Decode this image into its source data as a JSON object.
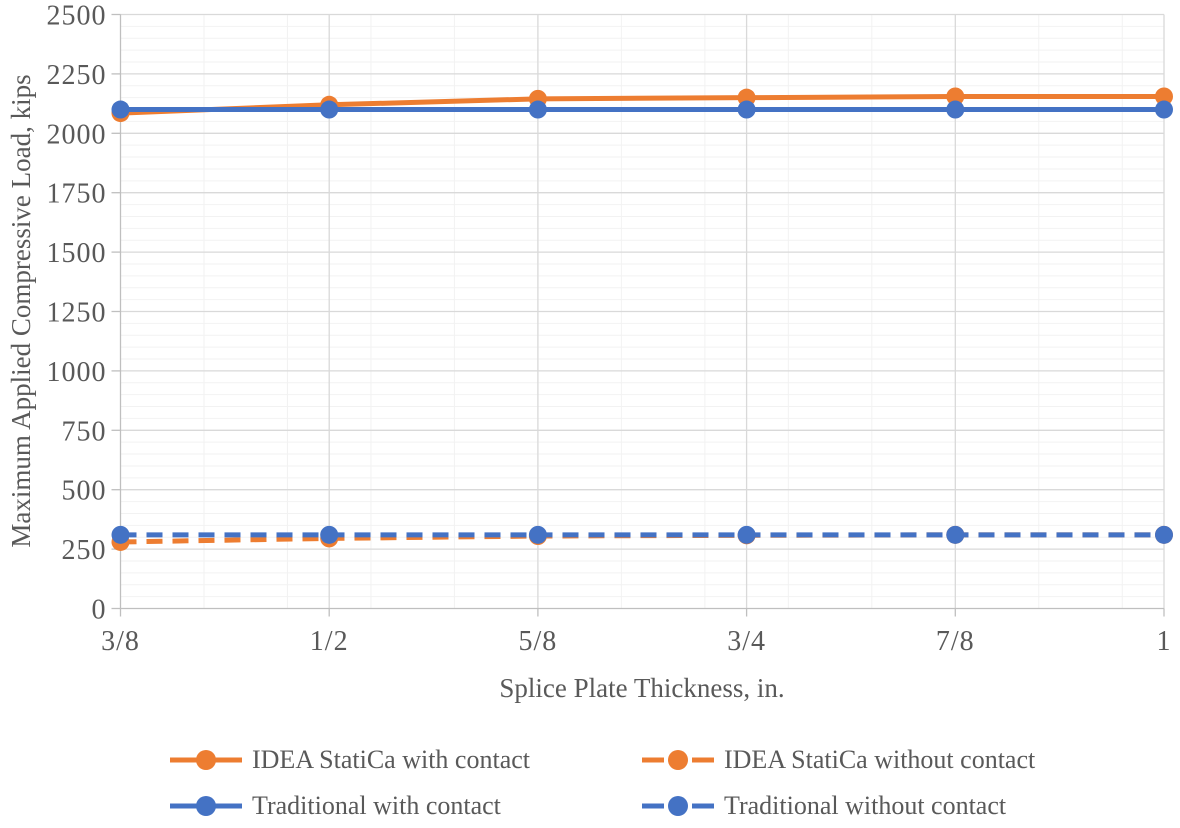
{
  "palette": {
    "text": "#595959",
    "axis": "#BFBFBF",
    "grid_major": "#D9D9D9",
    "grid_minor": "#F2F2F2",
    "background": "#FFFFFF",
    "orange": "#ED7D31",
    "blue": "#4472C4"
  },
  "chart_data": {
    "type": "line",
    "title": "",
    "xlabel": "Splice Plate Thickness, in.",
    "ylabel": "Maximum Applied Compressive Load, kips",
    "categories": [
      "3/8",
      "1/2",
      "5/8",
      "3/4",
      "7/8",
      "1"
    ],
    "x_values": [
      0.375,
      0.5,
      0.625,
      0.75,
      0.875,
      1.0
    ],
    "x_axis": {
      "min": 0.375,
      "max": 1.0,
      "major": 0.125,
      "minor": 0.05
    },
    "y_axis": {
      "min": 0,
      "max": 2500,
      "major": 250,
      "minor": 50
    },
    "y_tick_labels": [
      "0",
      "250",
      "500",
      "750",
      "1000",
      "1250",
      "1500",
      "1750",
      "2000",
      "2250",
      "2500"
    ],
    "grid": {
      "major": true,
      "minor": true
    },
    "legend_position": "bottom",
    "series": [
      {
        "name": "IDEA StatiCa with contact",
        "color": "#ED7D31",
        "style": "solid",
        "marker": "circle",
        "values": [
          2085,
          2120,
          2145,
          2150,
          2155,
          2155
        ]
      },
      {
        "name": "IDEA StatiCa without contact",
        "color": "#ED7D31",
        "style": "dashed",
        "marker": "circle",
        "values": [
          280,
          295,
          305,
          308,
          310,
          310
        ]
      },
      {
        "name": "Traditional with contact",
        "color": "#4472C4",
        "style": "solid",
        "marker": "circle",
        "values": [
          2100,
          2100,
          2100,
          2100,
          2100,
          2100
        ]
      },
      {
        "name": "Traditional without contact",
        "color": "#4472C4",
        "style": "dashed",
        "marker": "circle",
        "values": [
          310,
          310,
          310,
          310,
          310,
          310
        ]
      }
    ]
  }
}
